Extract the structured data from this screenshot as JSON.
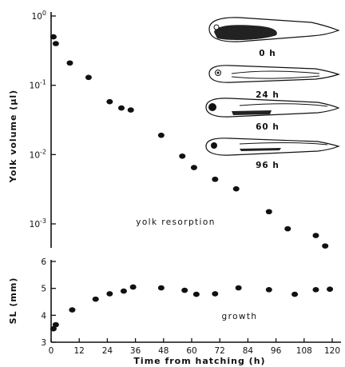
{
  "chart_data": [
    {
      "type": "scatter",
      "title": "",
      "ylabel": "Yolk volume (µl)",
      "xlabel": "",
      "yscale": "log",
      "ylim": [
        0.0004,
        1.0
      ],
      "xlim": [
        0,
        120
      ],
      "grid": false,
      "yticks": [
        {
          "value": 1.0,
          "mant": "10",
          "exp": "0"
        },
        {
          "value": 0.1,
          "mant": "10",
          "exp": "-1"
        },
        {
          "value": 0.01,
          "mant": "10",
          "exp": "-2"
        },
        {
          "value": 0.001,
          "mant": "10",
          "exp": "-3"
        }
      ],
      "annotation": "yolk resorption",
      "points": [
        {
          "x": 1,
          "y": 0.5
        },
        {
          "x": 2,
          "y": 0.4
        },
        {
          "x": 8,
          "y": 0.21
        },
        {
          "x": 16,
          "y": 0.13
        },
        {
          "x": 25,
          "y": 0.058
        },
        {
          "x": 30,
          "y": 0.047
        },
        {
          "x": 34,
          "y": 0.044
        },
        {
          "x": 47,
          "y": 0.019
        },
        {
          "x": 56,
          "y": 0.0095
        },
        {
          "x": 61,
          "y": 0.0065
        },
        {
          "x": 70,
          "y": 0.0044
        },
        {
          "x": 79,
          "y": 0.0032
        },
        {
          "x": 93,
          "y": 0.0015
        },
        {
          "x": 101,
          "y": 0.00085
        },
        {
          "x": 113,
          "y": 0.00068
        },
        {
          "x": 117,
          "y": 0.00048
        }
      ],
      "stages": [
        "0 h",
        "24 h",
        "60 h",
        "96 h"
      ]
    },
    {
      "type": "scatter",
      "title": "",
      "ylabel": "SL (mm)",
      "xlabel": "Time from hatching (h)",
      "ylim": [
        3,
        6
      ],
      "xlim": [
        0,
        120
      ],
      "grid": false,
      "yticks": [
        3,
        4,
        5,
        6
      ],
      "xticks": [
        0,
        12,
        24,
        36,
        48,
        60,
        72,
        84,
        96,
        108,
        120
      ],
      "annotation": "growth",
      "points": [
        {
          "x": 1,
          "y": 3.5
        },
        {
          "x": 2,
          "y": 3.65
        },
        {
          "x": 9,
          "y": 4.2
        },
        {
          "x": 19,
          "y": 4.6
        },
        {
          "x": 25,
          "y": 4.8
        },
        {
          "x": 31,
          "y": 4.9
        },
        {
          "x": 35,
          "y": 5.05
        },
        {
          "x": 47,
          "y": 5.02
        },
        {
          "x": 57,
          "y": 4.93
        },
        {
          "x": 62,
          "y": 4.78
        },
        {
          "x": 70,
          "y": 4.8
        },
        {
          "x": 80,
          "y": 5.02
        },
        {
          "x": 93,
          "y": 4.95
        },
        {
          "x": 104,
          "y": 4.78
        },
        {
          "x": 113,
          "y": 4.95
        },
        {
          "x": 119,
          "y": 4.97
        }
      ]
    }
  ]
}
